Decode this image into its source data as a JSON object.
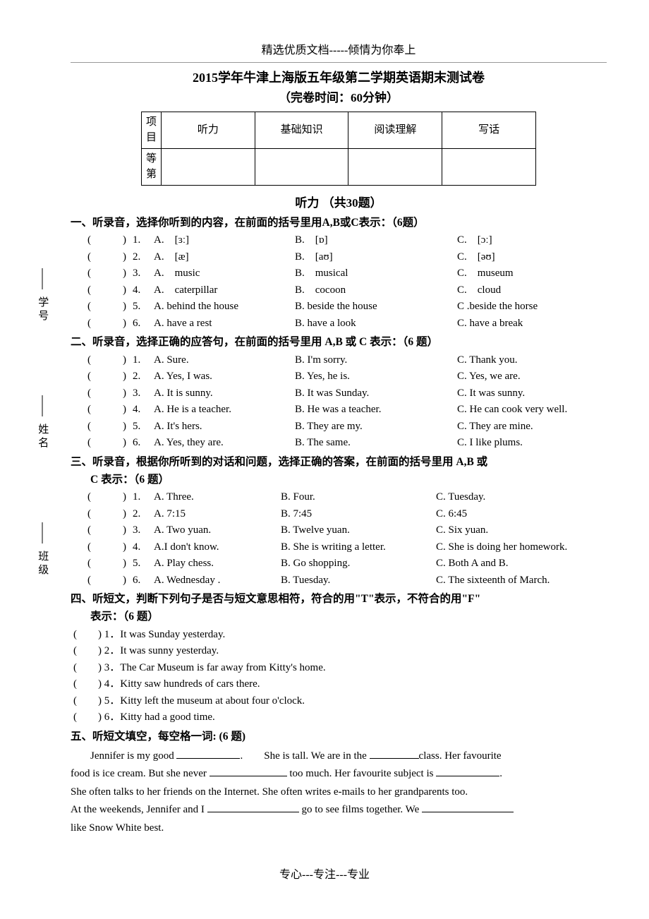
{
  "header": "精选优质文档-----倾情为你奉上",
  "title": "2015学年牛津上海版五年级第二学期英语期末测试卷",
  "subtitle": "（完卷时间：60分钟）",
  "score_headers": [
    "项目",
    "听力",
    "基础知识",
    "阅读理解",
    "写话"
  ],
  "score_row_label": "等第",
  "listening_title": "听力 （共30题）",
  "section1": {
    "instr": "一、听录音，选择你听到的内容，在前面的括号里用A,B或C表示：（6题）",
    "rows": [
      {
        "a": "[ɜː]",
        "b": "[ɒ]",
        "c": "[ɔː]"
      },
      {
        "a": "[æ]",
        "b": "[aʊ]",
        "c": "[əʊ]"
      },
      {
        "a": "music",
        "b": "musical",
        "c": "museum"
      },
      {
        "a": "caterpillar",
        "b": "cocoon",
        "c": "cloud"
      },
      {
        "a": "A. behind the house",
        "b": "B. beside the house",
        "c": "C .beside the horse",
        "raw": true
      },
      {
        "a": "A. have a rest",
        "b": "B. have a look",
        "c": "C. have a break",
        "raw": true
      }
    ]
  },
  "section2": {
    "instr": "二、听录音，选择正确的应答句，在前面的括号里用 A,B 或 C 表示：（6 题）",
    "rows": [
      {
        "a": "A. Sure.",
        "b": "B. I'm sorry.",
        "c": "C. Thank you."
      },
      {
        "a": "A. Yes, I was.",
        "b": "B. Yes, he is.",
        "c": "C. Yes, we are."
      },
      {
        "a": "A. It is sunny.",
        "b": "B. It was Sunday.",
        "c": "C. It was sunny."
      },
      {
        "a": "A. He is a teacher.",
        "b": "B. He was a teacher.",
        "c": "C. He can cook very well."
      },
      {
        "a": "A. It's hers.",
        "b": "B. They are my.",
        "c": "C. They are mine."
      },
      {
        "a": "A. Yes, they are.",
        "b": "B. The same.",
        "c": "C. I like plums."
      }
    ]
  },
  "section3": {
    "instr": "三、听录音，根据你所听到的对话和问题，选择正确的答案，在前面的括号里用 A,B 或",
    "instr_cont": "C 表示：（6 题）",
    "rows": [
      {
        "a": "A. Three.",
        "b": "B. Four.",
        "c": "C. Tuesday."
      },
      {
        "a": "A. 7:15",
        "b": "B. 7:45",
        "c": "C. 6:45"
      },
      {
        "a": "A. Two yuan.",
        "b": "B. Twelve yuan.",
        "c": "C. Six yuan."
      },
      {
        "a": "A.I don't know.",
        "b": "B. She is writing a letter.",
        "c": "C. She is doing her homework."
      },
      {
        "a": "A. Play chess.",
        "b": "B. Go shopping.",
        "c": "C. Both A and B."
      },
      {
        "a": "A. Wednesday .",
        "b": "B. Tuesday.",
        "c": "C. The sixteenth of March."
      }
    ]
  },
  "section4": {
    "instr": "四、听短文，判断下列句子是否与短文意思相符，符合的用\"T\"表示，不符合的用\"F\"",
    "instr_cont": "表示：（6 题）",
    "items": [
      "It was Sunday yesterday.",
      "It was sunny yesterday.",
      "The Car Museum is far away from Kitty's home.",
      "Kitty saw hundreds of cars there.",
      "Kitty left the museum at about four o'clock.",
      "Kitty had a good time."
    ]
  },
  "section5": {
    "instr": "五、听短文填空，每空格一词: (6 题)",
    "p1a": "Jennifer is my good ",
    "p1b": ".　　She is tall. We are in the ",
    "p1c": "class. Her favourite",
    "p2a": "food is ice cream. But she never ",
    "p2b": " too much. Her favourite subject is ",
    "p2c": ".",
    "p3": "She often talks to her friends on the Internet. She often writes e-mails to her grandparents too.",
    "p4a": "At the weekends, Jennifer and I ",
    "p4b": " go to see films together. We ",
    "p5": "like Snow White best."
  },
  "footer": "专心---专注---专业",
  "side": {
    "class": "班级",
    "name": "姓名",
    "no": "学号"
  },
  "bracket": "(　　　)",
  "bracket2": "(　　)",
  "prefix": {
    "a": "A.　",
    "b": "B.　",
    "c": "C.　"
  }
}
